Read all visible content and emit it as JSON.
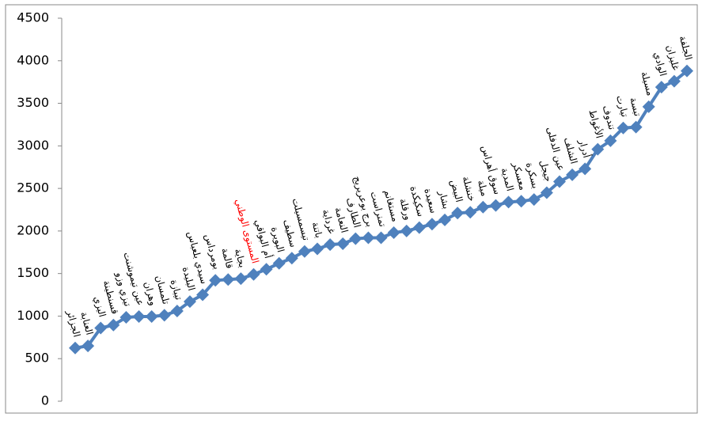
{
  "chart_data": {
    "type": "line",
    "categories": [
      "الجزائر",
      "العنابة",
      "اليزي",
      "قسنطينة",
      "تيزي وزو",
      "عين تيموشنت",
      "وهران",
      "تلمسان",
      "تيبازة",
      "البليدة",
      "سيدي بلعباس",
      "بومرداس",
      "قالمة",
      "بجاية",
      "المستوى الوطني",
      "أم البواقي",
      "البويرة",
      "سطيف",
      "تيسمسيلت",
      "باتنة",
      "غرداية",
      "النعامة",
      "الطارف",
      "برج بوعريريج",
      "تمنراست",
      "مستغانم",
      "ورقلة",
      "سكيكدة",
      "سعيدة",
      "بشار",
      "البيض",
      "خنشلة",
      "ميلة",
      "سوق أهراس",
      "المدية",
      "معسكر",
      "بسكرة",
      "جيجل",
      "عين الدفلى",
      "الشلف",
      "أدرار",
      "الأغواط",
      "تندوف",
      "تيارت",
      "تبسة",
      "مسيلة",
      "الوادي",
      "غليزان",
      "الجلفة"
    ],
    "series": [
      {
        "color": "#4f81bd",
        "label_color": "#000000",
        "highlight_index": 14,
        "highlight_color": "#ff0000",
        "values": [
          625,
          650,
          860,
          895,
          985,
          995,
          995,
          1010,
          1060,
          1170,
          1250,
          1420,
          1430,
          1440,
          1490,
          1550,
          1620,
          1680,
          1760,
          1790,
          1840,
          1850,
          1910,
          1920,
          1920,
          1980,
          2000,
          2040,
          2080,
          2130,
          2210,
          2220,
          2280,
          2300,
          2340,
          2350,
          2370,
          2450,
          2580,
          2660,
          2730,
          2960,
          3060,
          3210,
          3220,
          3460,
          3690,
          3760,
          3880
        ]
      }
    ],
    "ylim": [
      0,
      4500
    ],
    "yticks": [
      0,
      500,
      1000,
      1500,
      2000,
      2500,
      3000,
      3500,
      4000,
      4500
    ]
  }
}
